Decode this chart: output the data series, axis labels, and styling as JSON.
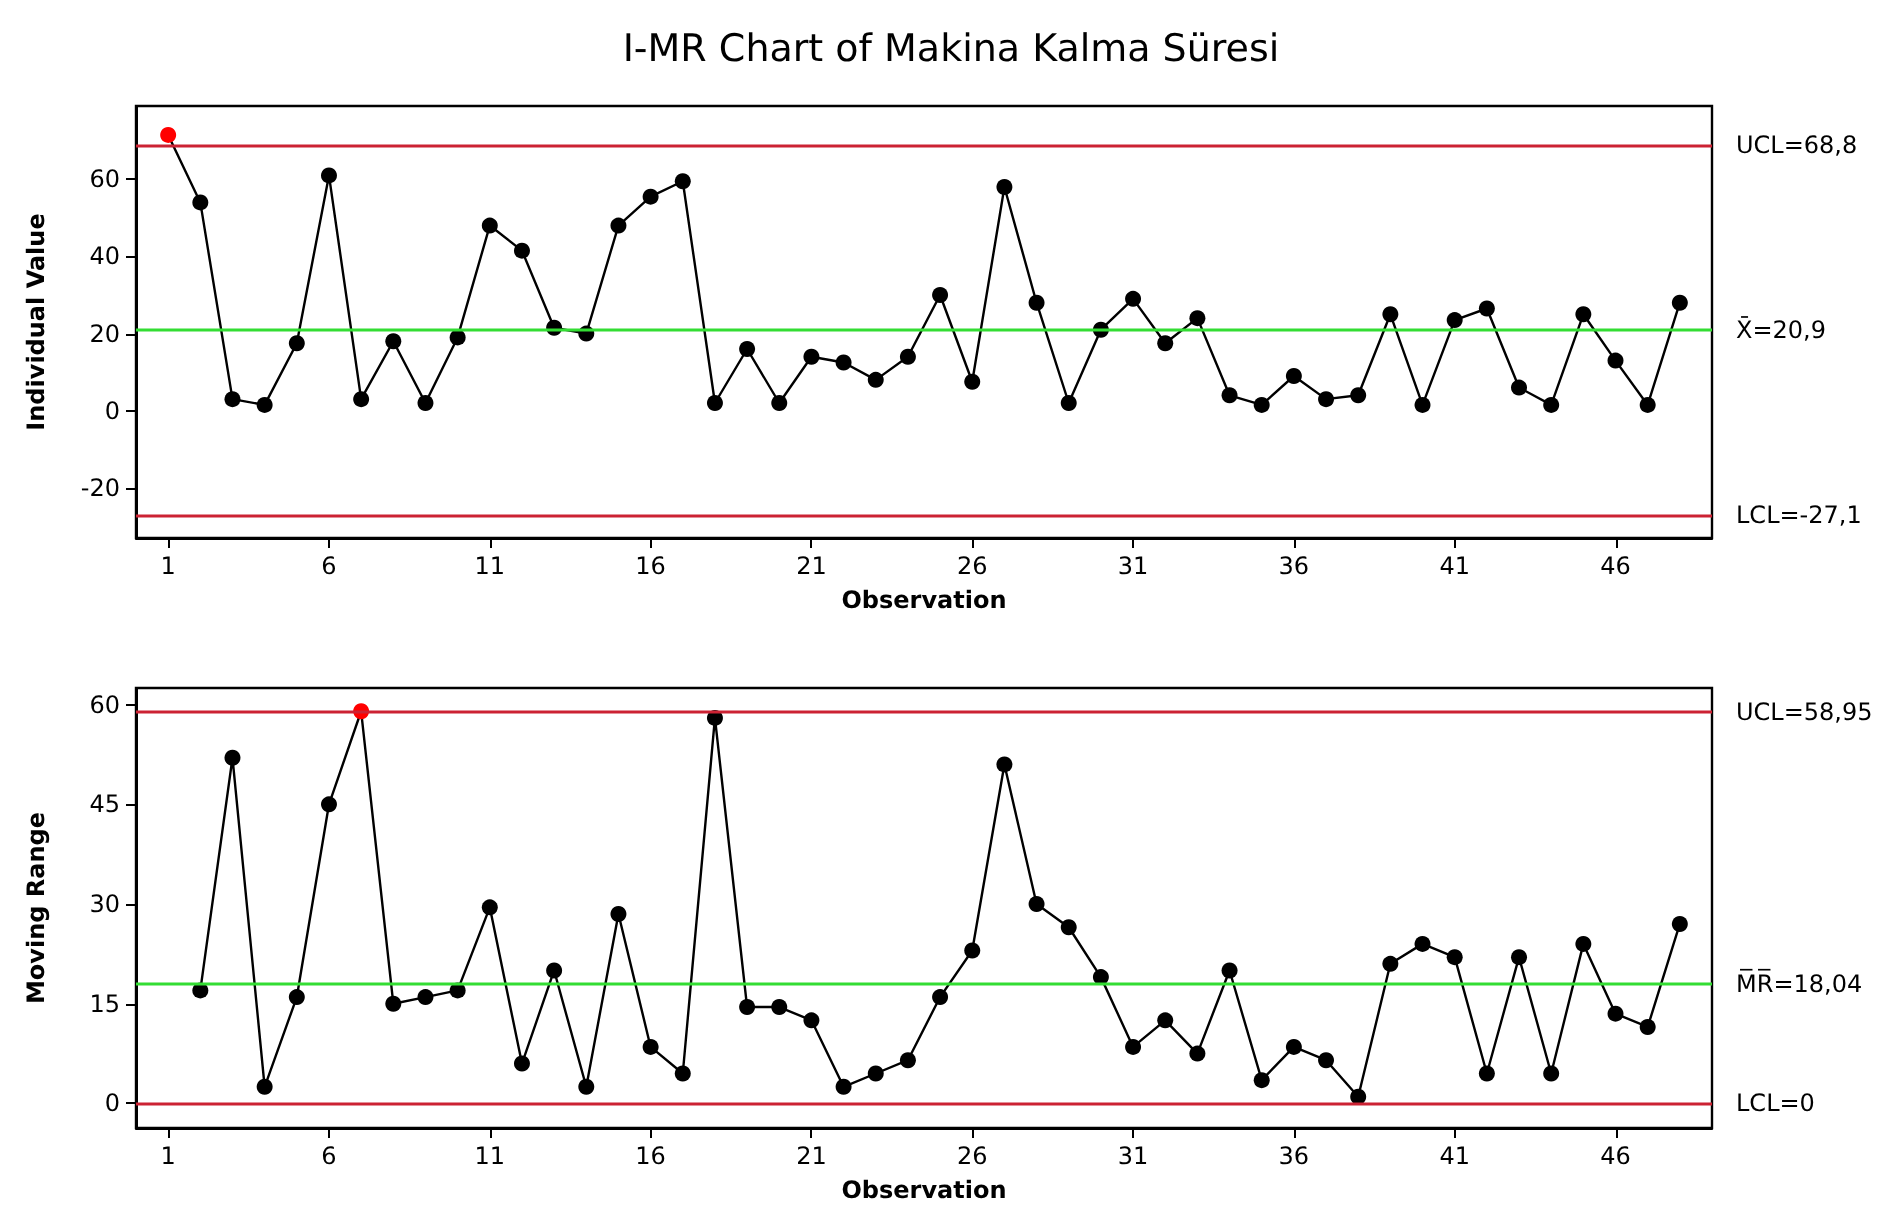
{
  "chart_data": [
    {
      "type": "line",
      "title": "I-MR Chart of Makina Kalma Süresi",
      "xlabel": "Observation",
      "ylabel": "Individual Value",
      "x": [
        1,
        2,
        3,
        4,
        5,
        6,
        7,
        8,
        9,
        10,
        11,
        12,
        13,
        14,
        15,
        16,
        17,
        18,
        19,
        20,
        21,
        22,
        23,
        24,
        25,
        26,
        27,
        28,
        29,
        30,
        31,
        32,
        33,
        34,
        35,
        36,
        37,
        38,
        39,
        40,
        41,
        42,
        43,
        44,
        45,
        46,
        47,
        48
      ],
      "series": [
        {
          "color": "#000000",
          "colors": [
            "#ff0000",
            "#000000",
            "#000000",
            "#000000",
            "#000000",
            "#000000",
            "#000000",
            "#000000",
            "#000000",
            "#000000",
            "#000000",
            "#000000",
            "#000000",
            "#000000",
            "#000000",
            "#000000",
            "#000000",
            "#000000",
            "#000000",
            "#000000",
            "#000000",
            "#000000",
            "#000000",
            "#000000",
            "#000000",
            "#000000",
            "#000000",
            "#000000",
            "#000000",
            "#000000",
            "#000000",
            "#000000",
            "#000000",
            "#000000",
            "#000000",
            "#000000",
            "#000000",
            "#000000",
            "#000000",
            "#000000",
            "#000000",
            "#000000",
            "#000000",
            "#000000",
            "#000000",
            "#000000",
            "#000000",
            "#000000"
          ],
          "values": [
            71.5,
            54,
            3,
            1.5,
            17.5,
            61,
            3,
            18,
            2,
            19,
            48,
            41.5,
            21.5,
            20,
            48,
            55.5,
            59.5,
            2,
            16,
            2,
            14,
            12.5,
            8,
            14,
            30,
            7.5,
            58,
            28,
            2,
            21,
            29,
            17.5,
            24,
            4,
            1.5,
            9,
            3,
            4,
            25,
            1.5,
            23.5,
            26.5,
            6,
            1.5,
            25,
            13,
            1.5,
            28
          ]
        }
      ],
      "xlim": [
        0,
        49
      ],
      "xticks": [
        1,
        6,
        11,
        16,
        21,
        26,
        31,
        36,
        41,
        46
      ],
      "ylim": [
        -33,
        79
      ],
      "yticks": [
        -20,
        0,
        20,
        40,
        60
      ],
      "ref_lines": [
        {
          "axis": "y",
          "value": 68.8,
          "label": "UCL=68,8",
          "color": "#cc2233"
        },
        {
          "axis": "y",
          "value": 20.9,
          "label": "X̄=20,9",
          "color": "#33dd33"
        },
        {
          "axis": "y",
          "value": -27.1,
          "label": "LCL=-27,1",
          "color": "#cc2233"
        }
      ],
      "marker": "circle",
      "line_style": "solid"
    },
    {
      "type": "line",
      "xlabel": "Observation",
      "ylabel": "Moving Range",
      "x": [
        2,
        3,
        4,
        5,
        6,
        7,
        8,
        9,
        10,
        11,
        12,
        13,
        14,
        15,
        16,
        17,
        18,
        19,
        20,
        21,
        22,
        23,
        24,
        25,
        26,
        27,
        28,
        29,
        30,
        31,
        32,
        33,
        34,
        35,
        36,
        37,
        38,
        39,
        40,
        41,
        42,
        43,
        44,
        45,
        46,
        47,
        48
      ],
      "series": [
        {
          "color": "#000000",
          "colors": [
            "#000000",
            "#000000",
            "#000000",
            "#000000",
            "#000000",
            "#ff0000",
            "#000000",
            "#000000",
            "#000000",
            "#000000",
            "#000000",
            "#000000",
            "#000000",
            "#000000",
            "#000000",
            "#000000",
            "#000000",
            "#000000",
            "#000000",
            "#000000",
            "#000000",
            "#000000",
            "#000000",
            "#000000",
            "#000000",
            "#000000",
            "#000000",
            "#000000",
            "#000000",
            "#000000",
            "#000000",
            "#000000",
            "#000000",
            "#000000",
            "#000000",
            "#000000",
            "#000000",
            "#000000",
            "#000000",
            "#000000",
            "#000000",
            "#000000",
            "#000000",
            "#000000",
            "#000000",
            "#000000",
            "#000000"
          ],
          "values": [
            17,
            52,
            2.5,
            16,
            45,
            59,
            15,
            16,
            17,
            29.5,
            6,
            20,
            2.5,
            28.5,
            8.5,
            4.5,
            58,
            14.5,
            14.5,
            12.5,
            2.5,
            4.5,
            6.5,
            16,
            23,
            51,
            30,
            26.5,
            19,
            8.5,
            12.5,
            7.5,
            20,
            3.5,
            8.5,
            6.5,
            1,
            21,
            24,
            22,
            4.5,
            22,
            4.5,
            24,
            13.5,
            11.5,
            27
          ]
        }
      ],
      "xlim": [
        0,
        49
      ],
      "xticks": [
        1,
        6,
        11,
        16,
        21,
        26,
        31,
        36,
        41,
        46
      ],
      "ylim": [
        -3.7,
        62.5
      ],
      "yticks": [
        0,
        15,
        30,
        45,
        60
      ],
      "ref_lines": [
        {
          "axis": "y",
          "value": 58.95,
          "label": "UCL=58,95",
          "color": "#cc2233"
        },
        {
          "axis": "y",
          "value": 18.04,
          "label": "M̅R̅=18,04",
          "color": "#33dd33"
        },
        {
          "axis": "y",
          "value": 0,
          "label": "LCL=0",
          "color": "#cc2233"
        }
      ],
      "marker": "circle",
      "line_style": "solid"
    }
  ]
}
